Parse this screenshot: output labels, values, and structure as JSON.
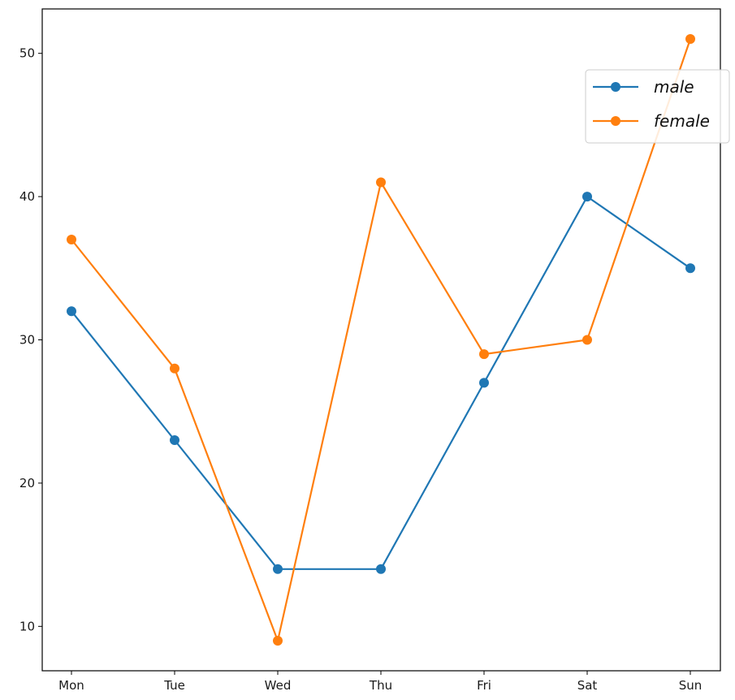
{
  "chart_data": {
    "type": "line",
    "title": "",
    "xlabel": "",
    "ylabel": "",
    "categories": [
      "Mon",
      "Tue",
      "Wed",
      "Thu",
      "Fri",
      "Sat",
      "Sun"
    ],
    "series": [
      {
        "name": "male",
        "color": "#1f77b4",
        "values": [
          32,
          23,
          14,
          14,
          27,
          40,
          35
        ]
      },
      {
        "name": "female",
        "color": "#ff7f0e",
        "values": [
          37,
          28,
          9,
          41,
          29,
          30,
          51
        ]
      }
    ],
    "ylim": [
      6.9,
      53.1
    ],
    "yticks": [
      10,
      20,
      30,
      40,
      50
    ],
    "grid": false,
    "legend_position": "top-right",
    "marker": "circle"
  }
}
